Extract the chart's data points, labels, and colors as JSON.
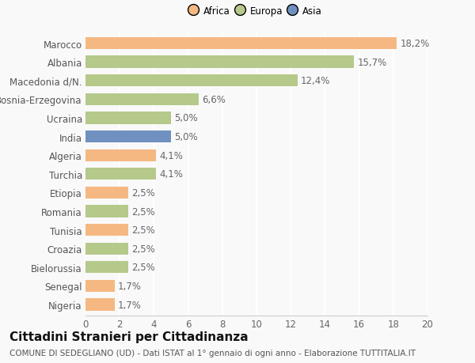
{
  "categories": [
    "Nigeria",
    "Senegal",
    "Bielorussia",
    "Croazia",
    "Tunisia",
    "Romania",
    "Etiopia",
    "Turchia",
    "Algeria",
    "India",
    "Ucraina",
    "Bosnia-Erzegovina",
    "Macedonia d/N.",
    "Albania",
    "Marocco"
  ],
  "values": [
    1.7,
    1.7,
    2.5,
    2.5,
    2.5,
    2.5,
    2.5,
    4.1,
    4.1,
    5.0,
    5.0,
    6.6,
    12.4,
    15.7,
    18.2
  ],
  "labels": [
    "1,7%",
    "1,7%",
    "2,5%",
    "2,5%",
    "2,5%",
    "2,5%",
    "2,5%",
    "4,1%",
    "4,1%",
    "5,0%",
    "5,0%",
    "6,6%",
    "12,4%",
    "15,7%",
    "18,2%"
  ],
  "colors": [
    "#f5b882",
    "#f5b882",
    "#b5c98a",
    "#b5c98a",
    "#f5b882",
    "#b5c98a",
    "#f5b882",
    "#b5c98a",
    "#f5b882",
    "#7090c0",
    "#b5c98a",
    "#b5c98a",
    "#b5c98a",
    "#b5c98a",
    "#f5b882"
  ],
  "legend_labels": [
    "Africa",
    "Europa",
    "Asia"
  ],
  "legend_colors": [
    "#f5b882",
    "#b5c98a",
    "#7090c0"
  ],
  "title": "Cittadini Stranieri per Cittadinanza",
  "subtitle": "COMUNE DI SEDEGLIANO (UD) - Dati ISTAT al 1° gennaio di ogni anno - Elaborazione TUTTITALIA.IT",
  "xlim": [
    0,
    20
  ],
  "xticks": [
    0,
    2,
    4,
    6,
    8,
    10,
    12,
    14,
    16,
    18,
    20
  ],
  "background_color": "#f9f9f9",
  "bar_height": 0.65,
  "label_fontsize": 8.5,
  "title_fontsize": 11,
  "subtitle_fontsize": 7.5,
  "tick_fontsize": 8.5,
  "ytick_fontsize": 8.5
}
